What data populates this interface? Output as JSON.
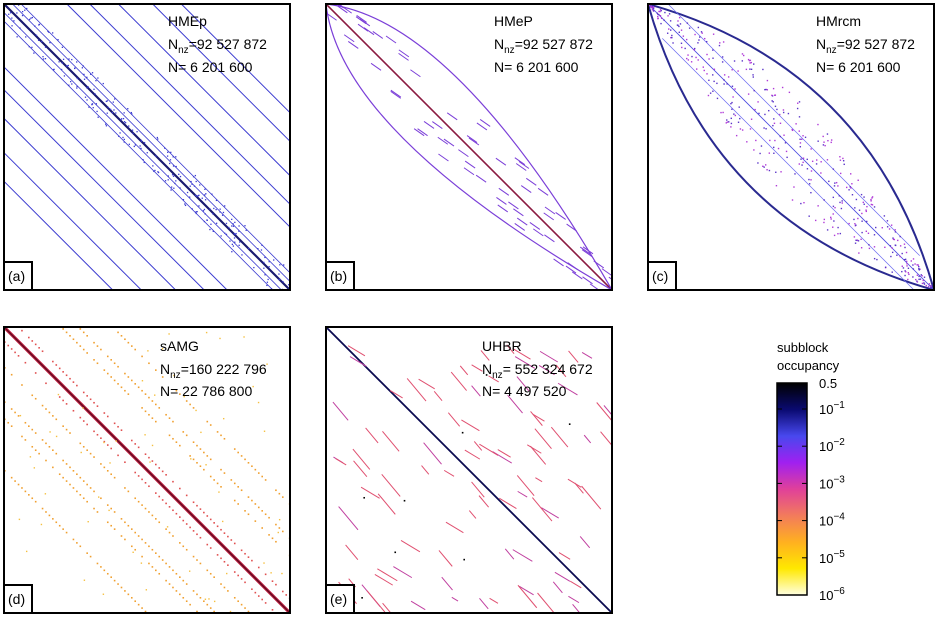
{
  "colorbar": {
    "title_line1": "subblock",
    "title_line2": "occupancy",
    "scale": "log",
    "range": [
      1e-06,
      0.5
    ],
    "ticks": [
      {
        "value": 0.5,
        "base": "0.5",
        "exp": ""
      },
      {
        "value": 0.1,
        "base": "10",
        "exp": "−1"
      },
      {
        "value": 0.01,
        "base": "10",
        "exp": "−2"
      },
      {
        "value": 0.001,
        "base": "10",
        "exp": "−3"
      },
      {
        "value": 0.0001,
        "base": "10",
        "exp": "−4"
      },
      {
        "value": 1e-05,
        "base": "10",
        "exp": "−5"
      },
      {
        "value": 1e-06,
        "base": "10",
        "exp": "−6"
      }
    ],
    "colors": [
      "#ffffe0",
      "#ffe800",
      "#ffb020",
      "#f27b5c",
      "#e0409a",
      "#a020f0",
      "#4848ee",
      "#0a0a70",
      "#000000"
    ]
  },
  "chart_data": [
    {
      "type": "heatmap",
      "tag": "(a)",
      "title": "HMEp",
      "nnz_label": "N",
      "nnz_sub": "nz",
      "nnz_value": "=92 527 872",
      "n_label": "N= 6 201 600",
      "nnz": 92527872,
      "n": 6201600,
      "structure": "banded-block with off-diagonal bands",
      "dominant_color": "#3a3ad0"
    },
    {
      "type": "heatmap",
      "tag": "(b)",
      "title": "HMeP",
      "nnz_label": "N",
      "nnz_sub": "nz",
      "nnz_value": "=92 527 872",
      "n_label": "N= 6 201 600",
      "nnz": 92527872,
      "n": 6201600,
      "structure": "diagonal with curved envelope",
      "dominant_color": "#7b3fd8"
    },
    {
      "type": "heatmap",
      "tag": "(c)",
      "title": "HMrcm",
      "nnz_label": "N",
      "nnz_sub": "nz",
      "nnz_value": "=92 527 872",
      "n_label": "N= 6 201 600",
      "nnz": 92527872,
      "n": 6201600,
      "structure": "lens-shaped band (RCM ordering)",
      "dominant_color": "#5a35c8"
    },
    {
      "type": "heatmap",
      "tag": "(d)",
      "title": "sAMG",
      "nnz_label": "N",
      "nnz_sub": "nz",
      "nnz_value": "=160 222 796",
      "n_label": "N= 22 786 800",
      "nnz": 160222796,
      "n": 22786800,
      "structure": "strong diagonal with parallel off-diagonal bands",
      "dominant_color": "#f0a030"
    },
    {
      "type": "heatmap",
      "tag": "(e)",
      "title": "UHBR",
      "nnz_label": "N",
      "nnz_sub": "nz",
      "nnz_value": "= 552 324 672",
      "n_label": "N= 4 497 520",
      "nnz": 552324672,
      "n": 4497520,
      "structure": "diagonal with scattered short segments",
      "dominant_color": "#e05070"
    }
  ]
}
